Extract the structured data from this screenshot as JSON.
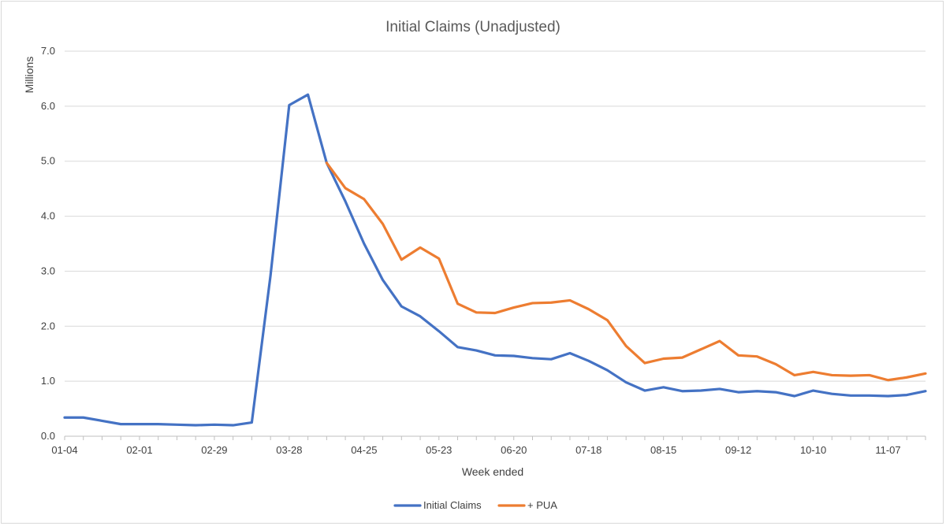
{
  "chart_data": {
    "type": "line",
    "title": "Initial Claims (Unadjusted)",
    "xlabel": "Week ended",
    "ylabel": "Millions",
    "ylim": [
      0,
      7
    ],
    "yticks": [
      "0.0",
      "1.0",
      "2.0",
      "3.0",
      "4.0",
      "5.0",
      "6.0",
      "7.0"
    ],
    "xtick_labels": [
      "01-04",
      "02-01",
      "02-29",
      "03-28",
      "04-25",
      "05-23",
      "06-20",
      "07-18",
      "08-15",
      "09-12",
      "10-10",
      "11-07"
    ],
    "x": [
      "01-04",
      "01-11",
      "01-18",
      "01-25",
      "02-01",
      "02-08",
      "02-15",
      "02-22",
      "02-29",
      "03-07",
      "03-14",
      "03-21",
      "03-28",
      "04-04",
      "04-11",
      "04-18",
      "04-25",
      "05-02",
      "05-09",
      "05-16",
      "05-23",
      "05-30",
      "06-06",
      "06-13",
      "06-20",
      "06-27",
      "07-04",
      "07-11",
      "07-18",
      "07-25",
      "08-01",
      "08-08",
      "08-15",
      "08-22",
      "08-29",
      "09-05",
      "09-12",
      "09-19",
      "09-26",
      "10-03",
      "10-10",
      "10-17",
      "10-24",
      "10-31",
      "11-07",
      "11-14",
      "11-21"
    ],
    "grid": true,
    "legend_position": "bottom",
    "series": [
      {
        "name": "Initial Claims",
        "color": "#4472c4",
        "values": [
          0.34,
          0.34,
          0.28,
          0.22,
          0.22,
          0.22,
          0.21,
          0.2,
          0.21,
          0.2,
          0.25,
          2.92,
          6.02,
          6.21,
          4.97,
          4.27,
          3.5,
          2.84,
          2.36,
          2.18,
          1.91,
          1.62,
          1.56,
          1.47,
          1.46,
          1.42,
          1.4,
          1.51,
          1.37,
          1.2,
          0.98,
          0.83,
          0.89,
          0.82,
          0.83,
          0.86,
          0.8,
          0.82,
          0.8,
          0.73,
          0.83,
          0.77,
          0.74,
          0.74,
          0.73,
          0.75,
          0.82
        ]
      },
      {
        "name": "+ PUA",
        "color": "#ed7d31",
        "values": [
          null,
          null,
          null,
          null,
          null,
          null,
          null,
          null,
          null,
          null,
          null,
          null,
          null,
          null,
          4.97,
          4.51,
          4.31,
          3.86,
          3.21,
          3.43,
          3.23,
          2.41,
          2.25,
          2.24,
          2.34,
          2.42,
          2.43,
          2.47,
          2.31,
          2.11,
          1.64,
          1.33,
          1.41,
          1.43,
          1.58,
          1.73,
          1.47,
          1.45,
          1.31,
          1.11,
          1.17,
          1.11,
          1.1,
          1.11,
          1.02,
          1.07,
          1.14
        ]
      }
    ]
  }
}
